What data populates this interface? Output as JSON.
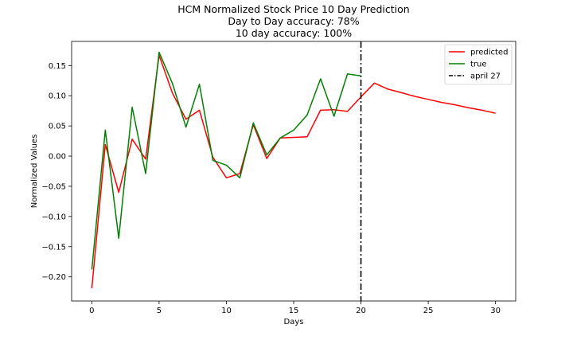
{
  "chart_data": {
    "type": "line",
    "title_lines": [
      "HCM Normalized Stock Price 10 Day Prediction",
      "Day to Day accuracy: 78%",
      "10 day accuracy: 100%"
    ],
    "xlabel": "Days",
    "ylabel": "Normalized Values",
    "xlim": [
      -1.5,
      31.5
    ],
    "ylim": [
      -0.24,
      0.19
    ],
    "x_ticks": [
      0,
      5,
      10,
      15,
      20,
      25,
      30
    ],
    "x_tick_labels": [
      "0",
      "5",
      "10",
      "15",
      "20",
      "25",
      "30"
    ],
    "y_ticks": [
      -0.2,
      -0.15,
      -0.1,
      -0.05,
      0.0,
      0.05,
      0.1,
      0.15
    ],
    "y_tick_labels": [
      "−0.20",
      "−0.15",
      "−0.10",
      "−0.05",
      "0.00",
      "0.05",
      "0.10",
      "0.15"
    ],
    "grid": false,
    "legend_position": "top-right",
    "series": [
      {
        "name": "predicted",
        "color": "#ff0000",
        "x": [
          0,
          1,
          2,
          3,
          4,
          5,
          6,
          7,
          8,
          9,
          10,
          11,
          12,
          13,
          14,
          15,
          16,
          17,
          18,
          19,
          20,
          21,
          22,
          23,
          24,
          25,
          26,
          27,
          28,
          29,
          30
        ],
        "values": [
          -0.219,
          0.019,
          -0.06,
          0.028,
          -0.005,
          0.167,
          0.104,
          0.061,
          0.076,
          -0.002,
          -0.036,
          -0.029,
          0.052,
          -0.004,
          0.03,
          0.031,
          0.032,
          0.076,
          0.077,
          0.074,
          0.098,
          0.121,
          0.111,
          0.105,
          0.099,
          0.094,
          0.089,
          0.085,
          0.08,
          0.076,
          0.071
        ]
      },
      {
        "name": "true",
        "color": "#008000",
        "x": [
          0,
          1,
          2,
          3,
          4,
          5,
          6,
          7,
          8,
          9,
          10,
          11,
          12,
          13,
          14,
          15,
          16,
          17,
          18,
          19,
          20
        ],
        "values": [
          -0.188,
          0.043,
          -0.136,
          0.081,
          -0.029,
          0.172,
          0.12,
          0.048,
          0.119,
          -0.007,
          -0.015,
          -0.036,
          0.055,
          0.002,
          0.03,
          0.043,
          0.068,
          0.128,
          0.066,
          0.136,
          0.133
        ]
      }
    ],
    "vline": {
      "name": "april 27",
      "x": 20,
      "color": "#000000",
      "style": "dash-dot"
    }
  }
}
